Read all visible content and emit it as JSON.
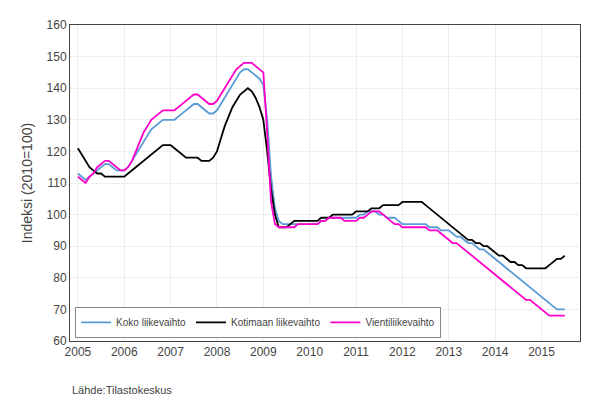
{
  "chart_data": {
    "type": "line",
    "ylabel": "Indeksi (2010=100)",
    "annotations": [
      "Lähde:Tilastokeskus"
    ],
    "xlim": [
      2004.83,
      2015.83
    ],
    "xticks": [
      2005,
      2006,
      2007,
      2008,
      2009,
      2010,
      2011,
      2012,
      2013,
      2014,
      2015
    ],
    "ylim": [
      60,
      160
    ],
    "yticks": [
      60,
      70,
      80,
      90,
      100,
      110,
      120,
      130,
      140,
      150,
      160
    ],
    "grid": true,
    "legend": "lower left",
    "x": [
      2005.0,
      2005.083,
      2005.167,
      2005.25,
      2005.333,
      2005.417,
      2005.5,
      2005.583,
      2005.667,
      2005.75,
      2005.833,
      2005.917,
      2006.0,
      2006.083,
      2006.167,
      2006.25,
      2006.333,
      2006.417,
      2006.5,
      2006.583,
      2006.667,
      2006.75,
      2006.833,
      2006.917,
      2007.0,
      2007.083,
      2007.167,
      2007.25,
      2007.333,
      2007.417,
      2007.5,
      2007.583,
      2007.667,
      2007.75,
      2007.833,
      2007.917,
      2008.0,
      2008.083,
      2008.167,
      2008.25,
      2008.333,
      2008.417,
      2008.5,
      2008.583,
      2008.667,
      2008.75,
      2008.833,
      2008.917,
      2009.0,
      2009.083,
      2009.167,
      2009.25,
      2009.333,
      2009.417,
      2009.5,
      2009.583,
      2009.667,
      2009.75,
      2009.833,
      2009.917,
      2010.0,
      2010.083,
      2010.167,
      2010.25,
      2010.333,
      2010.417,
      2010.5,
      2010.583,
      2010.667,
      2010.75,
      2010.833,
      2010.917,
      2011.0,
      2011.083,
      2011.167,
      2011.25,
      2011.333,
      2011.417,
      2011.5,
      2011.583,
      2011.667,
      2011.75,
      2011.833,
      2011.917,
      2012.0,
      2012.083,
      2012.167,
      2012.25,
      2012.333,
      2012.417,
      2012.5,
      2012.583,
      2012.667,
      2012.75,
      2012.833,
      2012.917,
      2013.0,
      2013.083,
      2013.167,
      2013.25,
      2013.333,
      2013.417,
      2013.5,
      2013.583,
      2013.667,
      2013.75,
      2013.833,
      2013.917,
      2014.0,
      2014.083,
      2014.167,
      2014.25,
      2014.333,
      2014.417,
      2014.5,
      2014.583,
      2014.667,
      2014.75,
      2014.833,
      2014.917,
      2015.0,
      2015.083,
      2015.167,
      2015.25,
      2015.333,
      2015.417,
      2015.5
    ],
    "series": [
      {
        "name": "Koko liikevaihto",
        "color": "#5b9bd5",
        "values": [
          113,
          112,
          111,
          112,
          113,
          114,
          115,
          116,
          116,
          115,
          114,
          114,
          114,
          115,
          117,
          119,
          121,
          123,
          125,
          127,
          128,
          129,
          130,
          130,
          130,
          130,
          131,
          132,
          133,
          134,
          135,
          135,
          134,
          133,
          132,
          132,
          133,
          135,
          137,
          139,
          141,
          143,
          145,
          146,
          146,
          145,
          144,
          143,
          141,
          130,
          112,
          102,
          98,
          97,
          97,
          97,
          97,
          97,
          97,
          97,
          97,
          97,
          97,
          98,
          98,
          99,
          99,
          99,
          99,
          99,
          99,
          99,
          99,
          100,
          100,
          101,
          101,
          101,
          100,
          100,
          99,
          99,
          99,
          98,
          97,
          97,
          97,
          97,
          97,
          97,
          97,
          96,
          96,
          96,
          95,
          95,
          95,
          94,
          93,
          93,
          92,
          91,
          91,
          90,
          89,
          89,
          88,
          87,
          86,
          85,
          84,
          83,
          82,
          81,
          80,
          79,
          78,
          77,
          76,
          75,
          74,
          73,
          72,
          71,
          70,
          70,
          70
        ]
      },
      {
        "name": "Kotimaan liikevaihto",
        "color": "#000000",
        "values": [
          121,
          119,
          117,
          115,
          114,
          113,
          113,
          112,
          112,
          112,
          112,
          112,
          112,
          113,
          114,
          115,
          116,
          117,
          118,
          119,
          120,
          121,
          122,
          122,
          122,
          121,
          120,
          119,
          118,
          118,
          118,
          118,
          117,
          117,
          117,
          118,
          120,
          124,
          128,
          131,
          134,
          136,
          138,
          139,
          140,
          139,
          137,
          134,
          130,
          120,
          108,
          100,
          96,
          96,
          96,
          97,
          98,
          98,
          98,
          98,
          98,
          98,
          98,
          99,
          99,
          99,
          100,
          100,
          100,
          100,
          100,
          100,
          101,
          101,
          101,
          101,
          102,
          102,
          102,
          103,
          103,
          103,
          103,
          103,
          104,
          104,
          104,
          104,
          104,
          104,
          103,
          102,
          101,
          100,
          99,
          98,
          97,
          96,
          95,
          94,
          93,
          92,
          92,
          91,
          91,
          90,
          90,
          89,
          88,
          87,
          87,
          86,
          85,
          85,
          84,
          84,
          83,
          83,
          83,
          83,
          83,
          83,
          84,
          85,
          86,
          86,
          87
        ]
      },
      {
        "name": "Vientiliikevaihto",
        "color": "#ff00cc",
        "values": [
          112,
          111,
          110,
          112,
          113,
          115,
          116,
          117,
          117,
          116,
          115,
          114,
          114,
          115,
          117,
          120,
          123,
          126,
          128,
          130,
          131,
          132,
          133,
          133,
          133,
          133,
          134,
          135,
          136,
          137,
          138,
          138,
          137,
          136,
          135,
          135,
          136,
          138,
          140,
          142,
          144,
          146,
          147,
          148,
          148,
          148,
          147,
          146,
          145,
          126,
          104,
          97,
          96,
          96,
          96,
          96,
          96,
          97,
          97,
          97,
          97,
          97,
          97,
          98,
          98,
          99,
          99,
          99,
          99,
          98,
          98,
          98,
          98,
          99,
          99,
          100,
          101,
          101,
          101,
          100,
          99,
          98,
          97,
          97,
          96,
          96,
          96,
          96,
          96,
          96,
          96,
          95,
          95,
          95,
          94,
          93,
          92,
          91,
          91,
          90,
          89,
          88,
          87,
          86,
          85,
          84,
          83,
          82,
          81,
          80,
          79,
          78,
          77,
          76,
          75,
          74,
          73,
          73,
          72,
          71,
          70,
          69,
          68,
          68,
          68,
          68,
          68
        ]
      }
    ]
  }
}
